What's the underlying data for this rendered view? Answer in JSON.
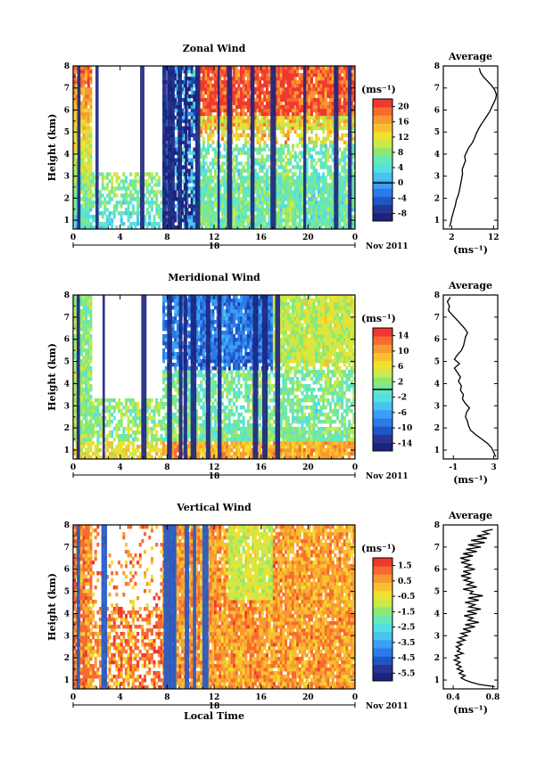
{
  "chart_data": [
    {
      "type": "heatmap",
      "title": "Zonal Wind",
      "ylabel": "Height (km)",
      "unit_label": "(ms⁻¹)",
      "x_ticks": [
        "0",
        "4",
        "8",
        "12",
        "16",
        "20",
        "0"
      ],
      "y_ticks": [
        "1",
        "2",
        "3",
        "4",
        "5",
        "6",
        "7",
        "8"
      ],
      "xlim": [
        0,
        24
      ],
      "ylim": [
        0.6,
        8
      ],
      "date_label": "18",
      "month_label": "Nov 2011",
      "colorbar_ticks": [
        "20",
        "16",
        "12",
        "8",
        "4",
        "0",
        "-4",
        "-8"
      ],
      "colorbar_range": [
        -10,
        22
      ],
      "colors": [
        "#1a237e",
        "#283593",
        "#1e56c8",
        "#2a7be8",
        "#3d9ef5",
        "#49c2f0",
        "#55e0e0",
        "#66e8b8",
        "#8ee870",
        "#c8ea4a",
        "#f0e030",
        "#f8c030",
        "#f89a30",
        "#f86a30",
        "#f03830"
      ],
      "average": {
        "title": "Average",
        "xlabel": "(ms⁻¹)",
        "x_ticks": [
          "2",
          "12"
        ],
        "xlim": [
          0,
          13
        ],
        "profile": [
          [
            0.7,
            1.5
          ],
          [
            0.9,
            1.8
          ],
          [
            1.1,
            2.0
          ],
          [
            1.3,
            2.3
          ],
          [
            1.5,
            2.6
          ],
          [
            1.7,
            2.9
          ],
          [
            1.9,
            3.1
          ],
          [
            2.1,
            3.5
          ],
          [
            2.3,
            3.8
          ],
          [
            2.5,
            4.0
          ],
          [
            2.7,
            4.2
          ],
          [
            2.9,
            4.4
          ],
          [
            3.1,
            4.6
          ],
          [
            3.3,
            4.5
          ],
          [
            3.5,
            4.9
          ],
          [
            3.7,
            5.3
          ],
          [
            3.9,
            5.1
          ],
          [
            4.1,
            5.6
          ],
          [
            4.3,
            6.1
          ],
          [
            4.5,
            6.9
          ],
          [
            4.7,
            7.4
          ],
          [
            4.9,
            7.8
          ],
          [
            5.1,
            8.3
          ],
          [
            5.3,
            8.9
          ],
          [
            5.5,
            9.6
          ],
          [
            5.7,
            10.3
          ],
          [
            5.9,
            11.0
          ],
          [
            6.1,
            11.5
          ],
          [
            6.3,
            12.0
          ],
          [
            6.5,
            12.5
          ],
          [
            6.7,
            12.7
          ],
          [
            6.9,
            12.3
          ],
          [
            7.1,
            11.6
          ],
          [
            7.3,
            10.6
          ],
          [
            7.5,
            9.6
          ],
          [
            7.7,
            8.9
          ],
          [
            7.9,
            8.6
          ]
        ]
      }
    },
    {
      "type": "heatmap",
      "title": "Meridional Wind",
      "ylabel": "Height (km)",
      "unit_label": "(ms⁻¹)",
      "x_ticks": [
        "0",
        "4",
        "8",
        "12",
        "16",
        "20",
        "0"
      ],
      "y_ticks": [
        "1",
        "2",
        "3",
        "4",
        "5",
        "6",
        "7",
        "8"
      ],
      "xlim": [
        0,
        24
      ],
      "ylim": [
        0.6,
        8
      ],
      "date_label": "18",
      "month_label": "Nov 2011",
      "colorbar_ticks": [
        "14",
        "10",
        "6",
        "2",
        "-2",
        "-6",
        "-10",
        "-14"
      ],
      "colorbar_range": [
        -16,
        16
      ],
      "colors": [
        "#1a237e",
        "#283593",
        "#1e56c8",
        "#2a7be8",
        "#3d9ef5",
        "#49c2f0",
        "#55e0e0",
        "#66e8b8",
        "#8ee870",
        "#c8ea4a",
        "#f0e030",
        "#f8c030",
        "#f89a30",
        "#f86a30",
        "#f03830"
      ],
      "average": {
        "title": "Average",
        "xlabel": "(ms⁻¹)",
        "x_ticks": [
          "-1",
          "3"
        ],
        "xlim": [
          -2,
          3.4
        ],
        "profile": [
          [
            0.7,
            3.2
          ],
          [
            0.9,
            3.0
          ],
          [
            1.1,
            2.8
          ],
          [
            1.3,
            2.4
          ],
          [
            1.5,
            1.8
          ],
          [
            1.7,
            1.2
          ],
          [
            1.9,
            0.7
          ],
          [
            2.1,
            0.5
          ],
          [
            2.3,
            0.4
          ],
          [
            2.5,
            0.2
          ],
          [
            2.7,
            0.3
          ],
          [
            2.9,
            0.6
          ],
          [
            3.1,
            0.2
          ],
          [
            3.3,
            -0.1
          ],
          [
            3.5,
            0.0
          ],
          [
            3.7,
            -0.3
          ],
          [
            3.9,
            -0.2
          ],
          [
            4.1,
            -0.5
          ],
          [
            4.3,
            -0.3
          ],
          [
            4.5,
            -0.6
          ],
          [
            4.7,
            -0.9
          ],
          [
            4.9,
            -0.4
          ],
          [
            5.1,
            -0.9
          ],
          [
            5.3,
            -0.6
          ],
          [
            5.5,
            -0.2
          ],
          [
            5.7,
            0.0
          ],
          [
            5.9,
            0.1
          ],
          [
            6.1,
            0.2
          ],
          [
            6.3,
            0.4
          ],
          [
            6.5,
            0.1
          ],
          [
            6.7,
            -0.3
          ],
          [
            6.9,
            -0.7
          ],
          [
            7.1,
            -1.1
          ],
          [
            7.3,
            -1.5
          ],
          [
            7.5,
            -1.4
          ],
          [
            7.7,
            -1.6
          ],
          [
            7.9,
            -1.3
          ]
        ]
      }
    },
    {
      "type": "heatmap",
      "title": "Vertical Wind",
      "ylabel": "Height (km)",
      "xlabel": "Local Time",
      "unit_label": "(ms⁻¹)",
      "x_ticks": [
        "0",
        "4",
        "8",
        "12",
        "16",
        "20",
        "0"
      ],
      "y_ticks": [
        "1",
        "2",
        "3",
        "4",
        "5",
        "6",
        "7",
        "8"
      ],
      "xlim": [
        0,
        24
      ],
      "ylim": [
        0.6,
        8
      ],
      "date_label": "18",
      "month_label": "Nov 2011",
      "colorbar_ticks": [
        "1.5",
        "0.5",
        "-0.5",
        "-1.5",
        "-2.5",
        "-3.5",
        "-4.5",
        "-5.5"
      ],
      "colorbar_range": [
        -6,
        2
      ],
      "colors": [
        "#1a237e",
        "#283593",
        "#1e56c8",
        "#2a7be8",
        "#3d9ef5",
        "#49c2f0",
        "#55e0e0",
        "#66e8b8",
        "#8ee870",
        "#c8ea4a",
        "#f0e030",
        "#f8c030",
        "#f89a30",
        "#f86a30",
        "#f03830"
      ],
      "average": {
        "title": "Average",
        "xlabel": "(ms⁻¹)",
        "x_ticks": [
          "0.4",
          "0.8"
        ],
        "xlim": [
          0.3,
          0.85
        ],
        "profile": [
          [
            0.7,
            0.82
          ],
          [
            0.8,
            0.66
          ],
          [
            0.9,
            0.58
          ],
          [
            1.0,
            0.52
          ],
          [
            1.1,
            0.48
          ],
          [
            1.2,
            0.52
          ],
          [
            1.3,
            0.46
          ],
          [
            1.4,
            0.5
          ],
          [
            1.5,
            0.44
          ],
          [
            1.6,
            0.48
          ],
          [
            1.7,
            0.43
          ],
          [
            1.8,
            0.47
          ],
          [
            1.9,
            0.41
          ],
          [
            2.0,
            0.46
          ],
          [
            2.1,
            0.42
          ],
          [
            2.2,
            0.5
          ],
          [
            2.3,
            0.44
          ],
          [
            2.4,
            0.47
          ],
          [
            2.5,
            0.43
          ],
          [
            2.6,
            0.49
          ],
          [
            2.7,
            0.44
          ],
          [
            2.8,
            0.52
          ],
          [
            2.9,
            0.46
          ],
          [
            3.0,
            0.54
          ],
          [
            3.1,
            0.48
          ],
          [
            3.2,
            0.58
          ],
          [
            3.3,
            0.5
          ],
          [
            3.4,
            0.62
          ],
          [
            3.5,
            0.52
          ],
          [
            3.6,
            0.66
          ],
          [
            3.7,
            0.55
          ],
          [
            3.8,
            0.6
          ],
          [
            3.9,
            0.51
          ],
          [
            4.0,
            0.64
          ],
          [
            4.1,
            0.54
          ],
          [
            4.2,
            0.68
          ],
          [
            4.3,
            0.56
          ],
          [
            4.4,
            0.62
          ],
          [
            4.5,
            0.52
          ],
          [
            4.6,
            0.66
          ],
          [
            4.7,
            0.55
          ],
          [
            4.8,
            0.7
          ],
          [
            4.9,
            0.57
          ],
          [
            5.0,
            0.6
          ],
          [
            5.1,
            0.5
          ],
          [
            5.2,
            0.64
          ],
          [
            5.3,
            0.54
          ],
          [
            5.4,
            0.6
          ],
          [
            5.5,
            0.51
          ],
          [
            5.6,
            0.57
          ],
          [
            5.7,
            0.48
          ],
          [
            5.8,
            0.58
          ],
          [
            5.9,
            0.5
          ],
          [
            6.0,
            0.62
          ],
          [
            6.1,
            0.52
          ],
          [
            6.2,
            0.58
          ],
          [
            6.3,
            0.48
          ],
          [
            6.4,
            0.56
          ],
          [
            6.5,
            0.47
          ],
          [
            6.6,
            0.6
          ],
          [
            6.7,
            0.5
          ],
          [
            6.8,
            0.64
          ],
          [
            6.9,
            0.53
          ],
          [
            7.0,
            0.68
          ],
          [
            7.1,
            0.55
          ],
          [
            7.2,
            0.72
          ],
          [
            7.3,
            0.58
          ],
          [
            7.4,
            0.74
          ],
          [
            7.5,
            0.64
          ],
          [
            7.6,
            0.76
          ],
          [
            7.7,
            0.7
          ],
          [
            7.8,
            0.8
          ]
        ]
      }
    }
  ]
}
